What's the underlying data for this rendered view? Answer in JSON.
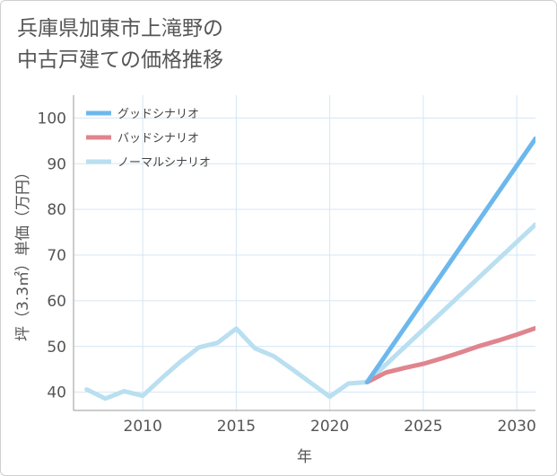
{
  "title": "兵庫県加東市上滝野の\n中古戸建ての価格推移",
  "chart_data": {
    "type": "line",
    "title": "兵庫県加東市上滝野の 中古戸建ての価格推移",
    "xlabel": "年",
    "ylabel": "坪（3.3㎡）単価（万円）",
    "xlim": [
      2006.3,
      2031
    ],
    "ylim": [
      36,
      105
    ],
    "xticks": [
      2010,
      2015,
      2020,
      2025,
      2030
    ],
    "yticks": [
      40,
      50,
      60,
      70,
      80,
      90,
      100
    ],
    "grid": true,
    "legend_position": "top-left",
    "series": [
      {
        "name": "グッドシナリオ",
        "color": "#6cb8ec",
        "x": [
          2022,
          2031
        ],
        "y": [
          42.2,
          95.5
        ]
      },
      {
        "name": "バッドシナリオ",
        "color": "#e0848e",
        "x": [
          2022,
          2023,
          2024,
          2025,
          2026,
          2027,
          2028,
          2029,
          2030,
          2031
        ],
        "y": [
          42.2,
          44.3,
          45.3,
          46.2,
          47.4,
          48.7,
          50.1,
          51.3,
          52.6,
          54.0
        ]
      },
      {
        "name": "ノーマルシナリオ",
        "color": "#b9dff0",
        "x": [
          2007,
          2008,
          2009,
          2010,
          2011,
          2012,
          2013,
          2014,
          2015,
          2016,
          2017,
          2018,
          2019,
          2020,
          2021,
          2022,
          2031
        ],
        "y": [
          40.6,
          38.6,
          40.2,
          39.2,
          43.0,
          46.6,
          49.8,
          50.8,
          53.9,
          49.6,
          47.9,
          45.0,
          42.0,
          39.0,
          41.9,
          42.2,
          76.7
        ]
      }
    ]
  }
}
